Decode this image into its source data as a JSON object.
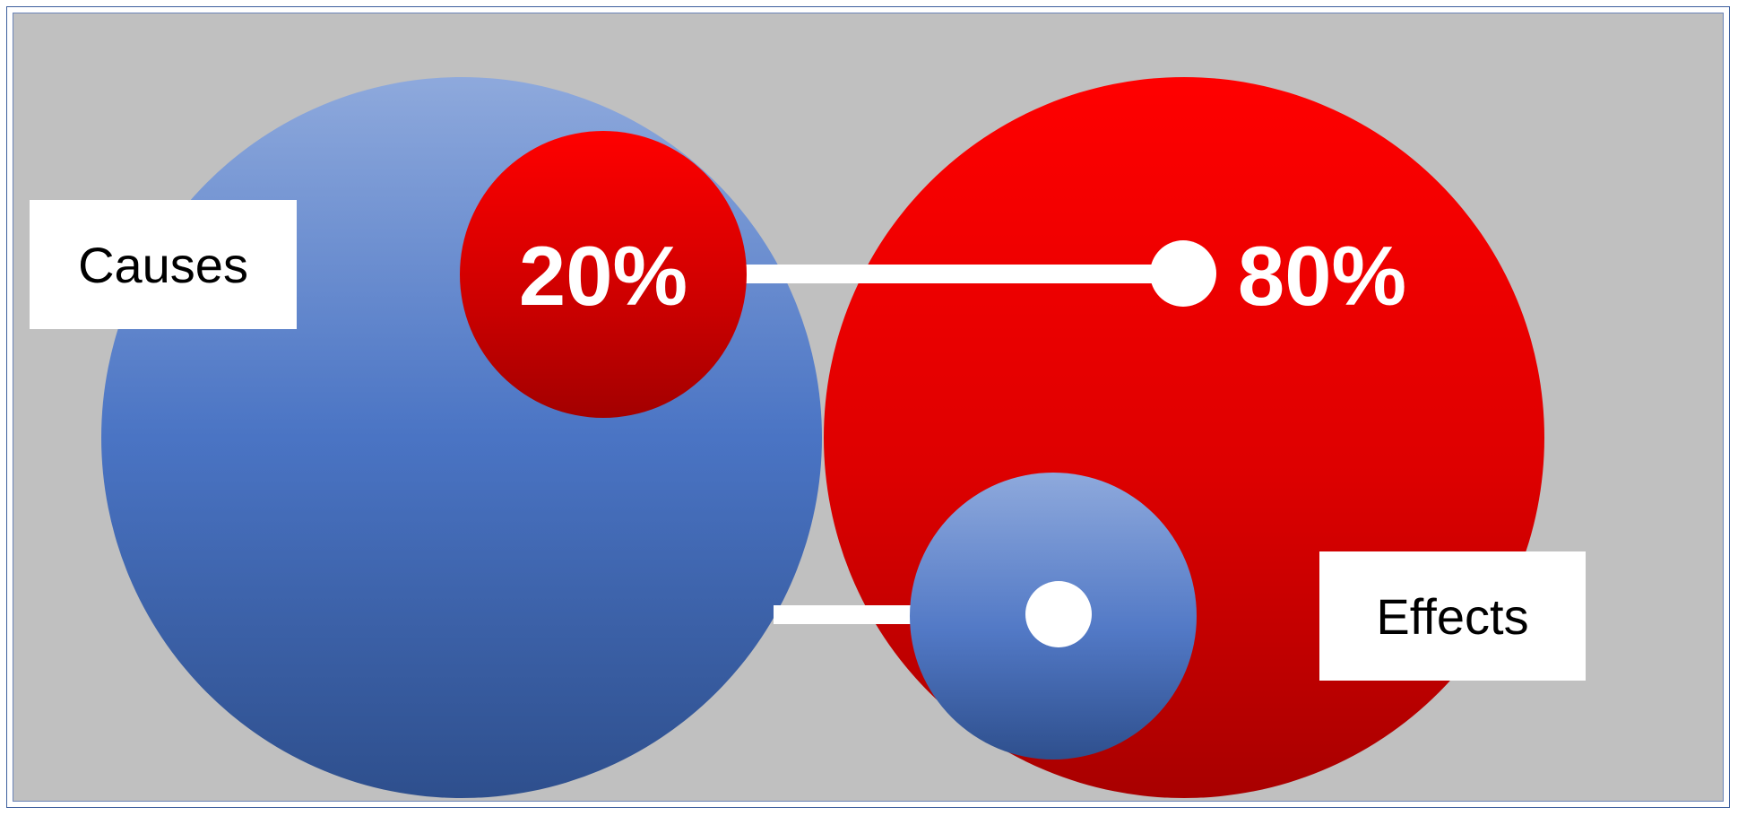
{
  "diagram": {
    "causes_label": "Causes",
    "effects_label": "Effects",
    "causes_percent": "20%",
    "effects_percent": "80%"
  },
  "colors": {
    "background": "#c0c0c0",
    "blue_light": "#8ea9dc",
    "blue_dark": "#2e4f8d",
    "red_light": "#ff0000",
    "red_dark": "#a80000",
    "connector": "#ffffff"
  }
}
